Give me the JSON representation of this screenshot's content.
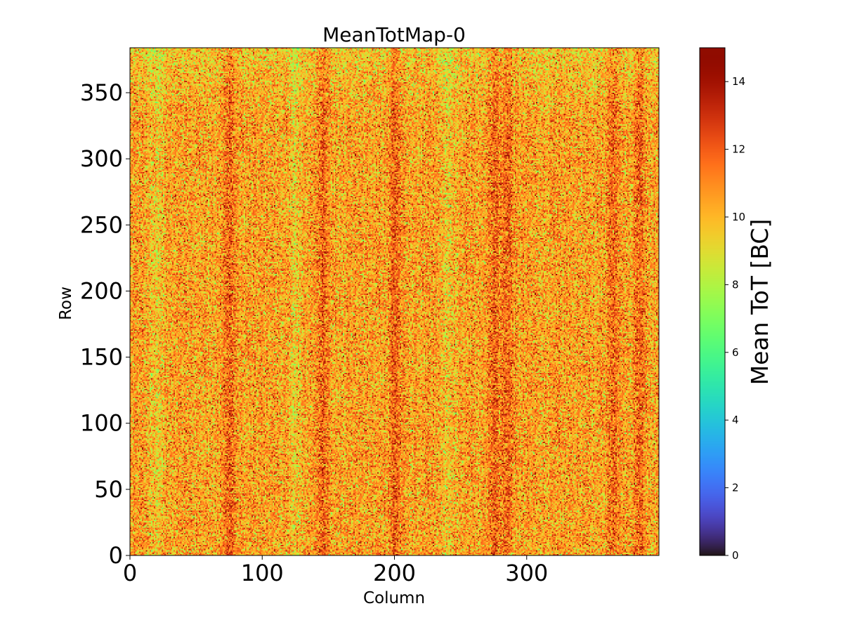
{
  "chart_data": {
    "type": "heatmap",
    "title": "MeanTotMap-0",
    "xlabel": "Column",
    "ylabel": "Row",
    "xlim": [
      0,
      400
    ],
    "ylim": [
      0,
      384
    ],
    "xticks": [
      0,
      100,
      200,
      300
    ],
    "yticks": [
      0,
      50,
      100,
      150,
      200,
      250,
      300,
      350
    ],
    "colorbar": {
      "label": "Mean ToT [BC]",
      "range": [
        0,
        15
      ],
      "ticks": [
        0,
        2,
        4,
        6,
        8,
        10,
        12,
        14
      ],
      "colormap": "turbo"
    },
    "value_summary": {
      "typical_range": [
        7,
        14
      ],
      "dominant_value": 10.5,
      "stripe_columns_high": [
        75,
        145,
        200,
        275,
        285,
        365,
        385
      ],
      "stripe_columns_low": [
        20,
        125,
        240
      ]
    },
    "grid": false
  },
  "colors": {
    "background": "#ffffff",
    "axis": "#000000"
  }
}
